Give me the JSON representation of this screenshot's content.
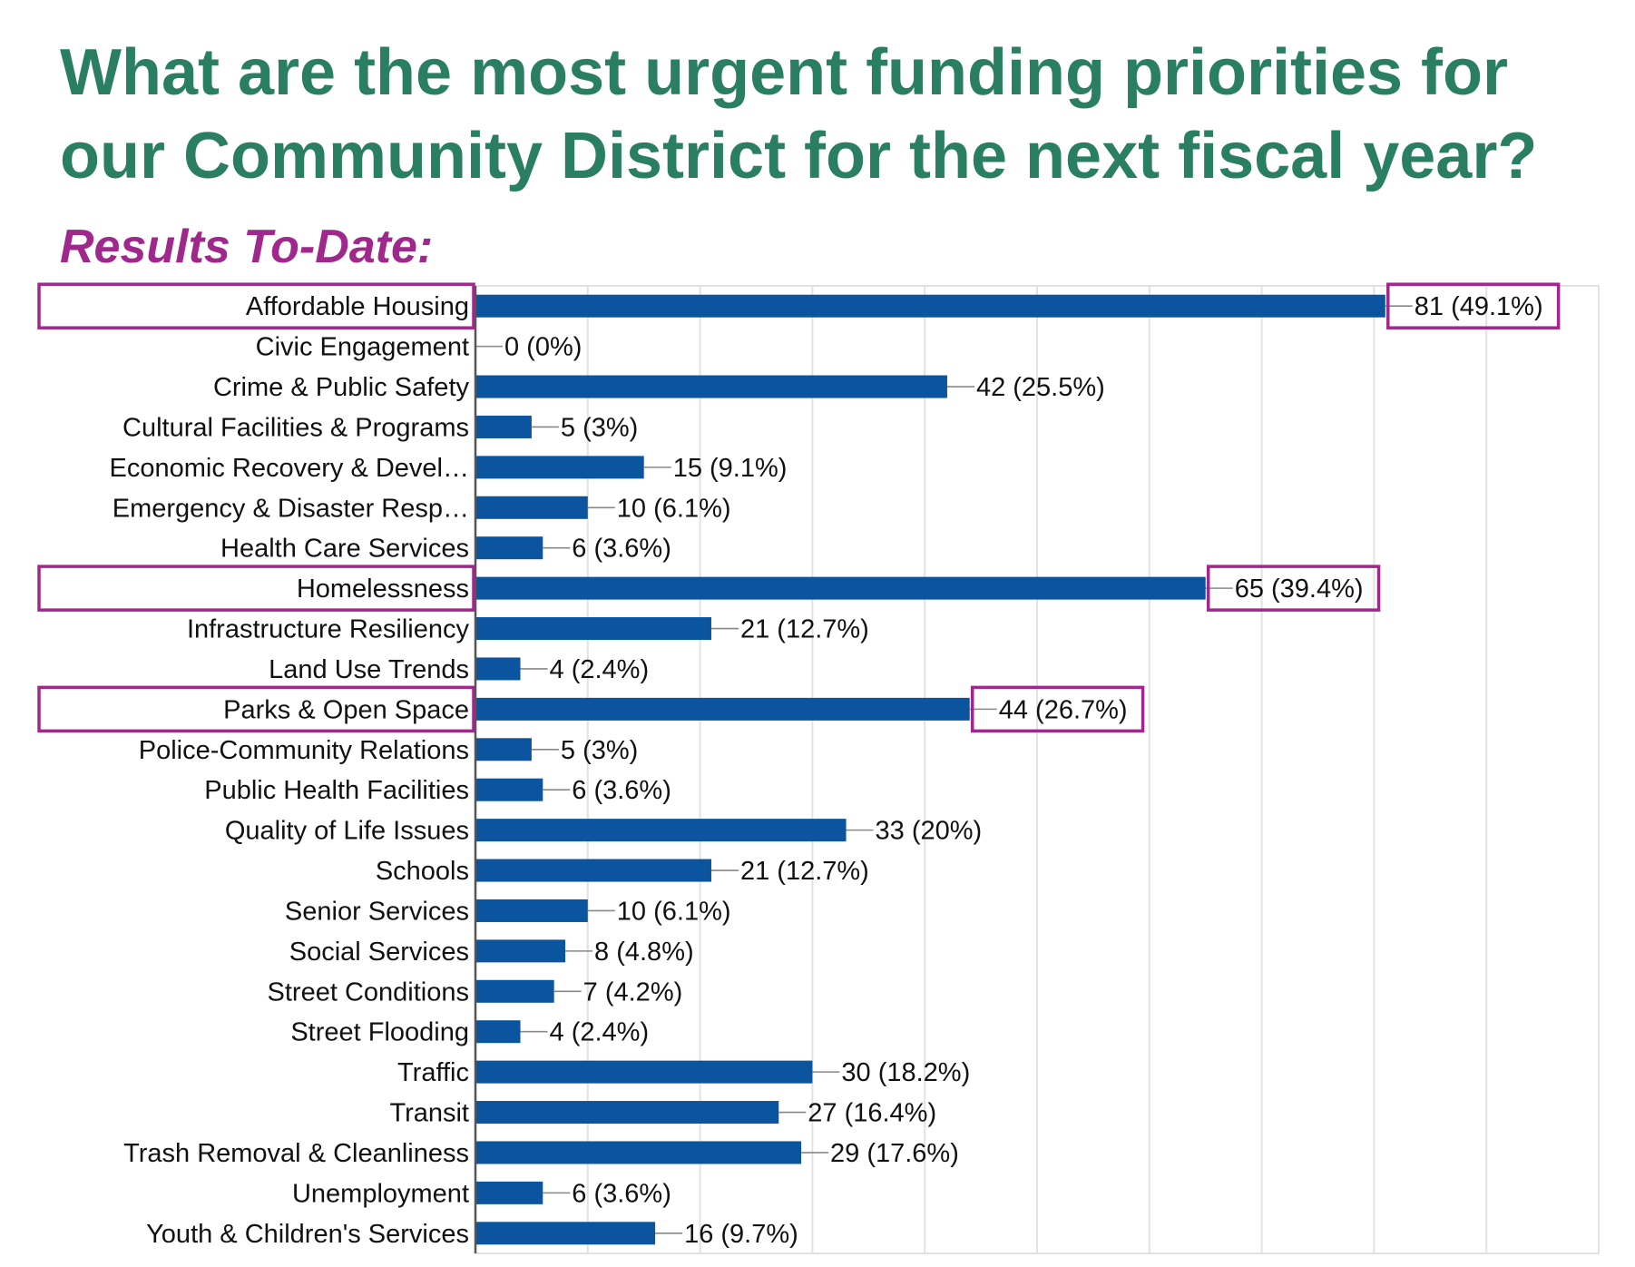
{
  "title": "What are the most urgent funding priorities for our Community District for the next fiscal year?",
  "subtitle": "Results To-Date:",
  "colors": {
    "title": "#2a7f62",
    "subtitle": "#a0288c",
    "bar": "#0b54a0",
    "highlight": "#a0288c",
    "gridline": "#e2e2e2",
    "axis": "#555555",
    "text": "#111111"
  },
  "chart_data": {
    "type": "bar",
    "orientation": "horizontal",
    "title": "What are the most urgent funding priorities for our Community District for the next fiscal year?",
    "subtitle": "Results To-Date:",
    "xlim": [
      0,
      100
    ],
    "grid": true,
    "categories": [
      "Affordable Housing",
      "Civic Engagement",
      "Crime & Public Safety",
      "Cultural Facilities & Programs",
      "Economic Recovery & Devel…",
      "Emergency & Disaster Resp…",
      "Health Care Services",
      "Homelessness",
      "Infrastructure Resiliency",
      "Land Use Trends",
      "Parks & Open Space",
      "Police-Community Relations",
      "Public Health Facilities",
      "Quality of Life Issues",
      "Schools",
      "Senior Services",
      "Social Services",
      "Street Conditions",
      "Street Flooding",
      "Traffic",
      "Transit",
      "Trash Removal & Cleanliness",
      "Unemployment",
      "Youth & Children's Services"
    ],
    "values": [
      81,
      0,
      42,
      5,
      15,
      10,
      6,
      65,
      21,
      4,
      44,
      5,
      6,
      33,
      21,
      10,
      8,
      7,
      4,
      30,
      27,
      29,
      6,
      16
    ],
    "data_labels": [
      "81 (49.1%)",
      "0 (0%)",
      "42 (25.5%)",
      "5 (3%)",
      "15 (9.1%)",
      "10 (6.1%)",
      "6 (3.6%)",
      "65 (39.4%)",
      "21 (12.7%)",
      "4 (2.4%)",
      "44 (26.7%)",
      "5 (3%)",
      "6 (3.6%)",
      "33 (20%)",
      "21 (12.7%)",
      "10 (6.1%)",
      "8 (4.8%)",
      "7 (4.2%)",
      "4 (2.4%)",
      "30 (18.2%)",
      "27 (16.4%)",
      "29 (17.6%)",
      "6 (3.6%)",
      "16 (9.7%)"
    ],
    "highlighted": [
      "Affordable Housing",
      "Homelessness",
      "Parks & Open Space"
    ]
  }
}
